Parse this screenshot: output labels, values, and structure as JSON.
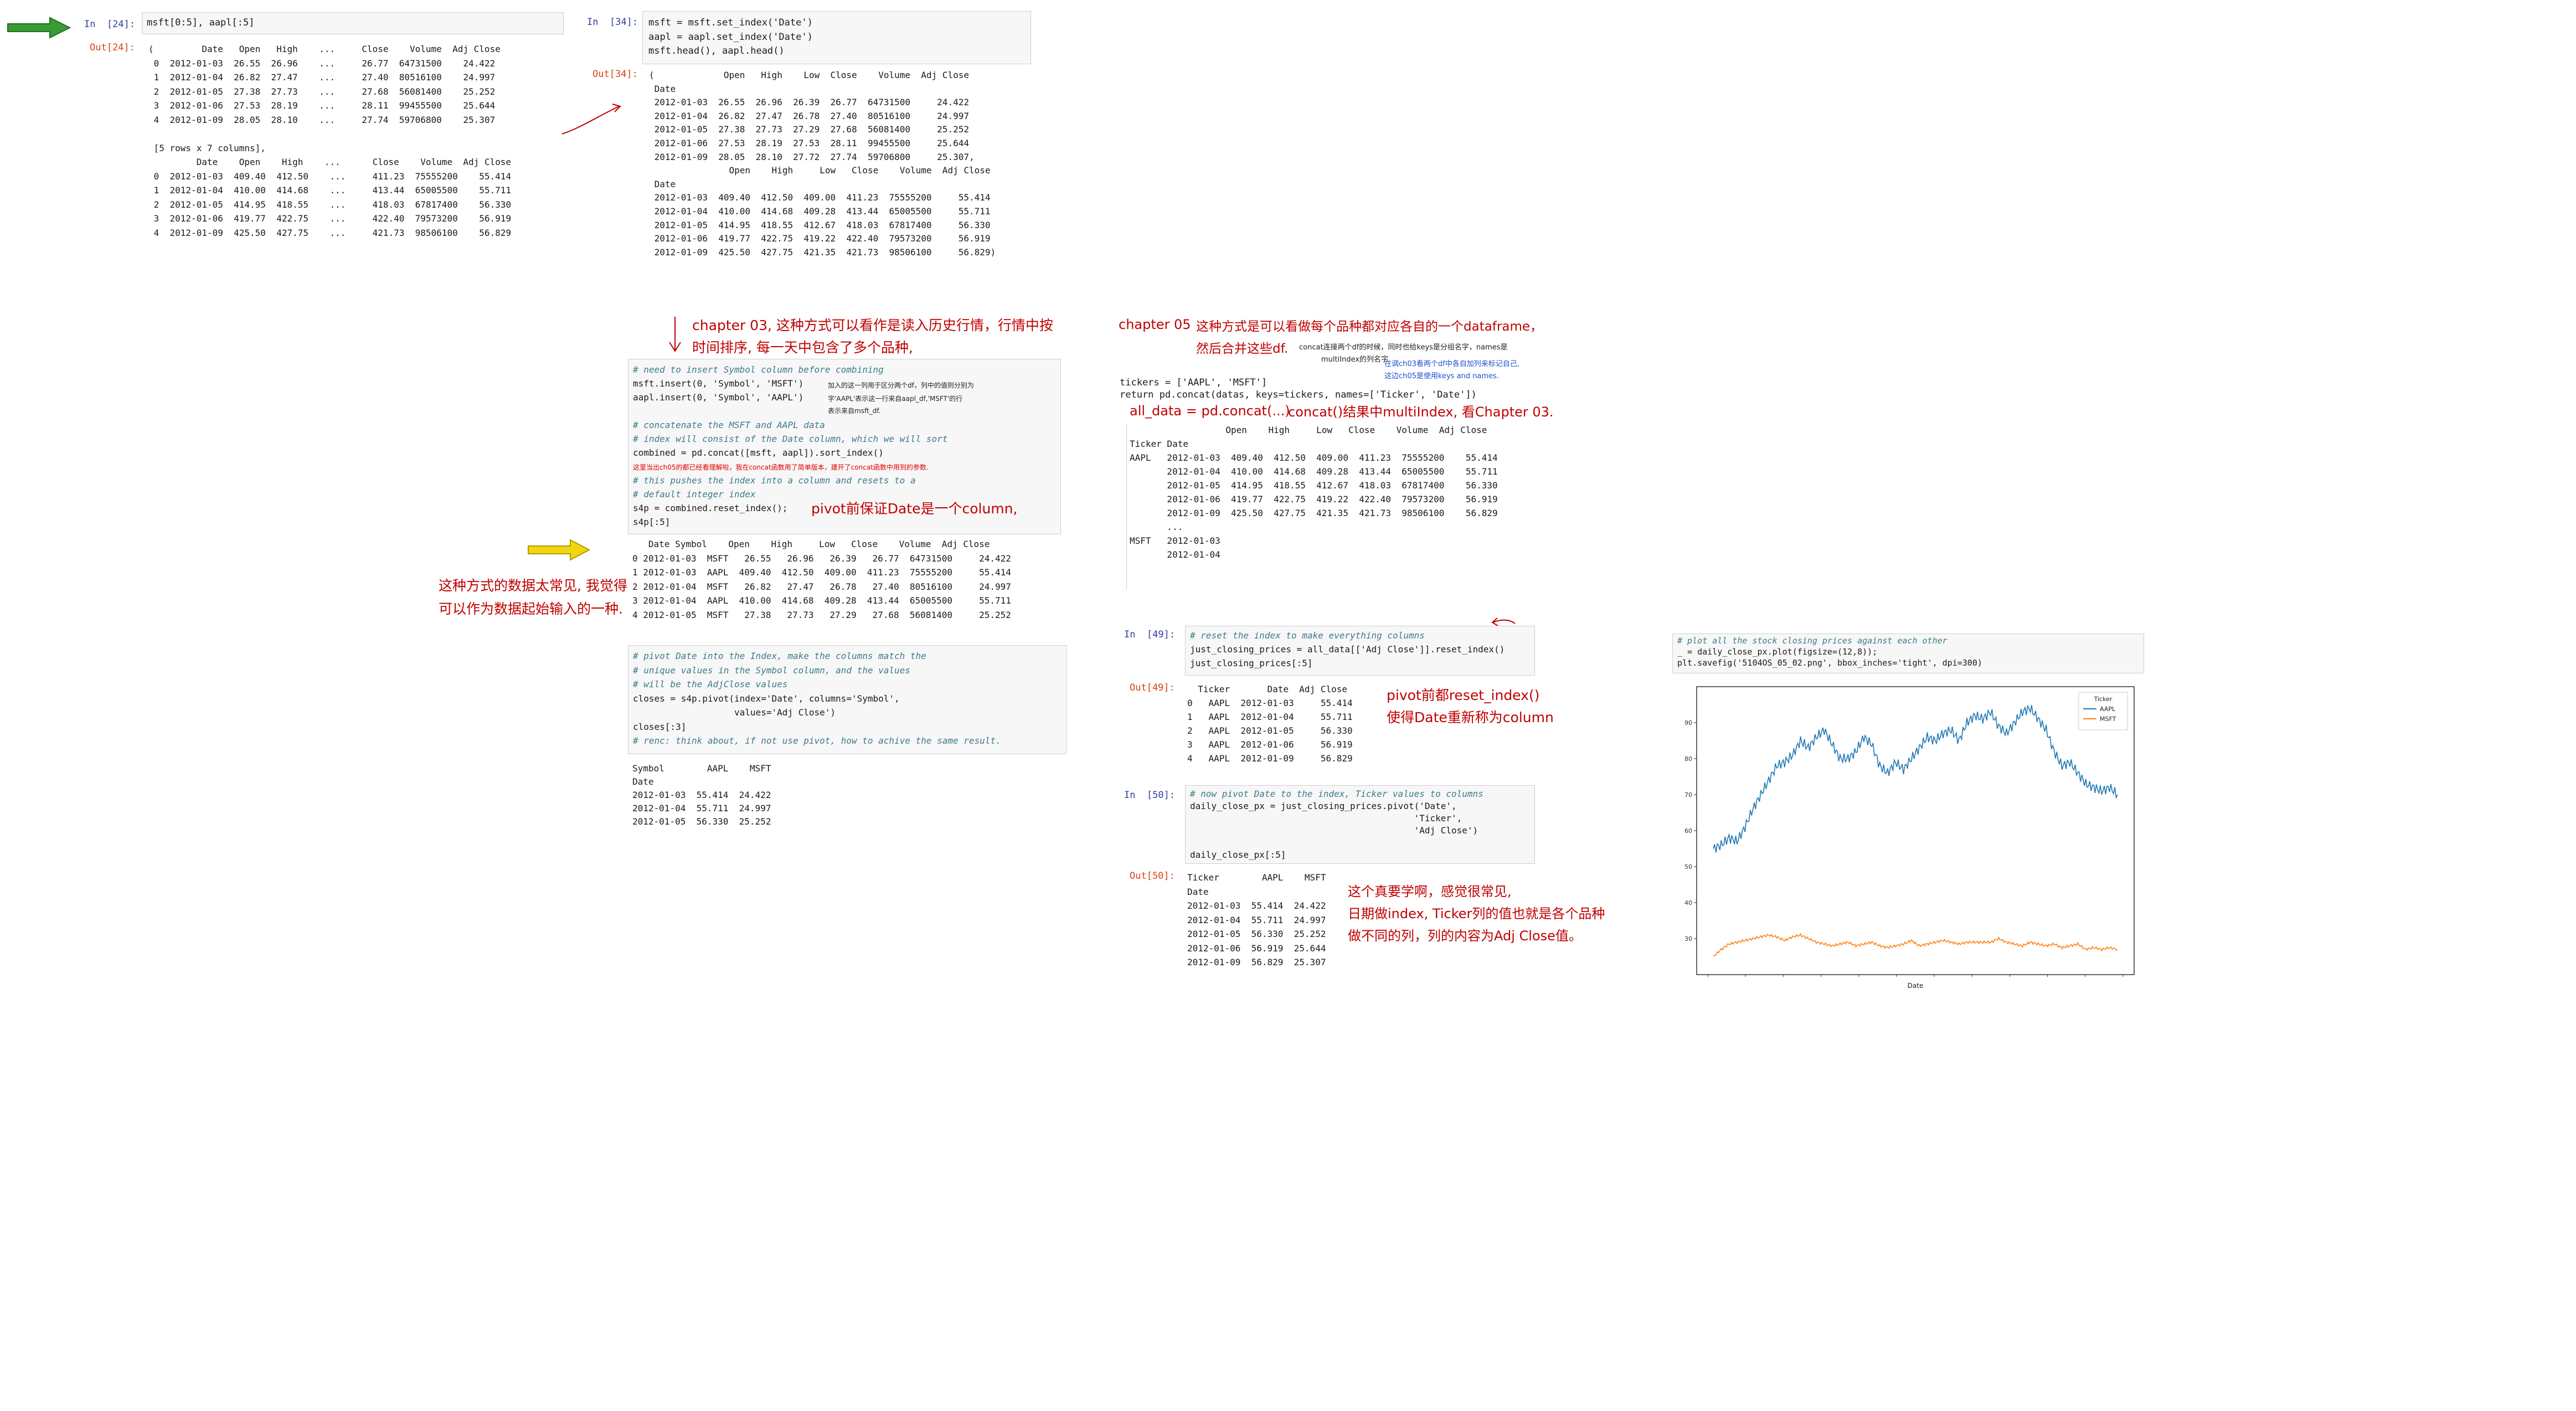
{
  "colors": {
    "red_note": "#c00000",
    "prompt_in": "#303f9f",
    "prompt_out": "#d84315",
    "aapl_line": "#1f77b4",
    "msft_line": "#ff7f0e",
    "green_arrow": "#3a9b35",
    "yellow_arrow": "#f2d50f"
  },
  "cell24": {
    "in_prompt": "In  [24]:",
    "code": "msft[0:5], aapl[:5]",
    "out_prompt": "Out[24]:",
    "out_lines": [
      "(         Date   Open   High    ...     Close    Volume  Adj Close",
      " 0  2012-01-03  26.55  26.96    ...     26.77  64731500    24.422",
      " 1  2012-01-04  26.82  27.47    ...     27.40  80516100    24.997",
      " 2  2012-01-05  27.38  27.73    ...     27.68  56081400    25.252",
      " 3  2012-01-06  27.53  28.19    ...     28.11  99455500    25.644",
      " 4  2012-01-09  28.05  28.10    ...     27.74  59706800    25.307",
      "",
      " [5 rows x 7 columns],",
      "         Date    Open    High    ...      Close    Volume  Adj Close",
      " 0  2012-01-03  409.40  412.50    ...     411.23  75555200    55.414",
      " 1  2012-01-04  410.00  414.68    ...     413.44  65005500    55.711",
      " 2  2012-01-05  414.95  418.55    ...     418.03  67817400    56.330",
      " 3  2012-01-06  419.77  422.75    ...     422.40  79573200    56.919",
      " 4  2012-01-09  425.50  427.75    ...     421.73  98506100    56.829"
    ]
  },
  "cell34": {
    "in_prompt": "In  [34]:",
    "code": [
      "msft = msft.set_index('Date')",
      "aapl = aapl.set_index('Date')",
      "msft.head(), aapl.head()"
    ],
    "out_prompt": "Out[34]:",
    "out_lines": [
      "(             Open   High    Low  Close    Volume  Adj Close",
      " Date",
      " 2012-01-03  26.55  26.96  26.39  26.77  64731500     24.422",
      " 2012-01-04  26.82  27.47  26.78  27.40  80516100     24.997",
      " 2012-01-05  27.38  27.73  27.29  27.68  56081400     25.252",
      " 2012-01-06  27.53  28.19  27.53  28.11  99455500     25.644",
      " 2012-01-09  28.05  28.10  27.72  27.74  59706800     25.307,",
      "               Open    High     Low   Close    Volume  Adj Close",
      " Date",
      " 2012-01-03  409.40  412.50  409.00  411.23  75555200     55.414",
      " 2012-01-04  410.00  414.68  409.28  413.44  65005500     55.711",
      " 2012-01-05  414.95  418.55  412.67  418.03  67817400     56.330",
      " 2012-01-06  419.77  422.75  419.22  422.40  79573200     56.919",
      " 2012-01-09  425.50  427.75  421.35  421.73  98506100     56.829)"
    ]
  },
  "notes_mid": {
    "ch03_line1": "chapter 03, 这种方式可以看作是读入历史行情，行情中按",
    "ch03_line2": "时间排序, 每一天中包含了多个品种,",
    "pivot_note": "pivot前保证Date是一个column,",
    "left_line1": "这种方式的数据太常见, 我觉得",
    "left_line2": "可以作为数据起始输入的一种."
  },
  "cell_combine": {
    "lines": [
      {
        "t": "comment",
        "text": "# need to insert Symbol column before combining"
      },
      {
        "t": "code",
        "text": "msft.insert(0, 'Symbol', 'MSFT')"
      },
      {
        "t": "code",
        "text": "aapl.insert(0, 'Symbol', 'AAPL')"
      },
      {
        "t": "blank",
        "text": ""
      },
      {
        "t": "comment",
        "text": "# concatenate the MSFT and AAPL data"
      },
      {
        "t": "comment",
        "text": "# index will consist of the Date column, which we will sort"
      },
      {
        "t": "code",
        "text": "combined = pd.concat([msft, aapl]).sort_index()"
      },
      {
        "t": "blank",
        "text": ""
      },
      {
        "t": "comment",
        "text": "# this pushes the index into a column and resets to a"
      },
      {
        "t": "comment",
        "text": "# default integer index"
      },
      {
        "t": "code",
        "text": "s4p = combined.reset_index();"
      },
      {
        "t": "code",
        "text": "s4p[:5]"
      }
    ],
    "small_note1": "加入的这一列用于区分两个df，列中的值则分别为",
    "small_note2": "字'AAPL'表示这一行来自aapl_df,'MSFT'的行",
    "small_note3": "表示来自msft_df.",
    "small_red": "这里当出ch05的都已经看理解啦，我在concat函数用了简单版本，建开了concat函数中用到的参数.",
    "out_lines": [
      "   Date Symbol    Open    High     Low   Close    Volume  Adj Close",
      "0 2012-01-03  MSFT   26.55   26.96   26.39   26.77  64731500     24.422",
      "1 2012-01-03  AAPL  409.40  412.50  409.00  411.23  75555200     55.414",
      "2 2012-01-04  MSFT   26.82   27.47   26.78   27.40  80516100     24.997",
      "3 2012-01-04  AAPL  410.00  414.68  409.28  413.44  65005500     55.711",
      "4 2012-01-05  MSFT   27.38   27.73   27.29   27.68  56081400     25.252"
    ]
  },
  "cell_pivot": {
    "lines": [
      {
        "t": "comment",
        "text": "# pivot Date into the Index, make the columns match the"
      },
      {
        "t": "comment",
        "text": "# unique values in the Symbol column, and the values"
      },
      {
        "t": "comment",
        "text": "# will be the AdjClose values"
      },
      {
        "t": "code",
        "text": "closes = s4p.pivot(index='Date', columns='Symbol',"
      },
      {
        "t": "code",
        "text": "                   values='Adj Close')"
      },
      {
        "t": "code",
        "text": "closes[:3]"
      },
      {
        "t": "comment",
        "text": "# renc: think about, if not use pivot, how to achive the same result."
      }
    ],
    "out_lines": [
      "Symbol        AAPL    MSFT",
      "Date",
      "2012-01-03  55.414  24.422",
      "2012-01-04  55.711  24.997",
      "2012-01-05  56.330  25.252"
    ]
  },
  "ch05": {
    "title": "chapter 05",
    "line1": "这种方式是可以看做每个品种都对应各自的一个dataframe，",
    "line2": "然后合并这些df.",
    "small1": "concat连接两个df的时候，同时也给keys是分组名字，names是",
    "small2": "multiIndex的列名字.",
    "blue1": "在调ch03看两个df中各自加列来标记自己,",
    "blue2": "这边ch05是使用keys and names.",
    "code": [
      "tickers = ['AAPL', 'MSFT']",
      "return pd.concat(datas, keys=tickers, names=['Ticker', 'Date'])"
    ],
    "concat_note": "concat()结果中multiIndex, 看Chapter 03.",
    "all_data_label": "all_data = pd.concat(...)",
    "out_lines": [
      "                  Open    High     Low   Close    Volume  Adj Close",
      "Ticker Date",
      "AAPL   2012-01-03  409.40  412.50  409.00  411.23  75555200    55.414",
      "       2012-01-04  410.00  414.68  409.28  413.44  65005500    55.711",
      "       2012-01-05  414.95  418.55  412.67  418.03  67817400    56.330",
      "       2012-01-06  419.77  422.75  419.22  422.40  79573200    56.919",
      "       2012-01-09  425.50  427.75  421.35  421.73  98506100    56.829",
      "       ...",
      "MSFT   2012-01-03",
      "       2012-01-04"
    ]
  },
  "cell49": {
    "in_prompt": "In  [49]:",
    "lines": [
      {
        "t": "comment",
        "text": "# reset the index to make everything columns"
      },
      {
        "t": "code",
        "text": "just_closing_prices = all_data[['Adj Close']].reset_index()"
      },
      {
        "t": "code",
        "text": "just_closing_prices[:5]"
      }
    ],
    "out_prompt": "Out[49]:",
    "out_lines": [
      "  Ticker       Date  Adj Close",
      "0   AAPL  2012-01-03     55.414",
      "1   AAPL  2012-01-04     55.711",
      "2   AAPL  2012-01-05     56.330",
      "3   AAPL  2012-01-06     56.919",
      "4   AAPL  2012-01-09     56.829"
    ],
    "note1": "pivot前都reset_index()",
    "note2": "使得Date重新称为column"
  },
  "cell50": {
    "in_prompt": "In  [50]:",
    "lines": [
      {
        "t": "comment",
        "text": "# now pivot Date to the index, Ticker values to columns"
      },
      {
        "t": "code",
        "text": "daily_close_px = just_closing_prices.pivot('Date',"
      },
      {
        "t": "code",
        "text": "                                          'Ticker',"
      },
      {
        "t": "code",
        "text": "                                          'Adj Close')"
      },
      {
        "t": "blank",
        "text": ""
      },
      {
        "t": "code",
        "text": "daily_close_px[:5]"
      }
    ],
    "out_prompt": "Out[50]:",
    "out_lines": [
      "Ticker        AAPL    MSFT",
      "Date",
      "2012-01-03  55.414  24.422",
      "2012-01-04  55.711  24.997",
      "2012-01-05  56.330  25.252",
      "2012-01-06  56.919  25.644",
      "2012-01-09  56.829  25.307"
    ],
    "note1": "这个真要学啊，感觉很常见,",
    "note2": "日期做index, Ticker列的值也就是各个品种",
    "note3": "做不同的列，列的内容为Adj Close值。"
  },
  "cell_plot": {
    "comment": "# plot all the stock closing prices against each other",
    "code1": "_ = daily_close_px.plot(figsize=(12,8));",
    "code2": "plt.savefig('5104OS_05_02.png', bbox_inches='tight', dpi=300)"
  },
  "chart_data": {
    "type": "line",
    "xlabel": "Date",
    "ylabel": "",
    "ylim": [
      20,
      100
    ],
    "yticks": [
      30,
      40,
      50,
      60,
      70,
      80,
      90
    ],
    "legend_title": "Ticker",
    "legend_position": "top-right",
    "series": [
      {
        "name": "AAPL",
        "values": [
          55,
          56,
          58,
          57,
          61,
          66,
          70,
          74,
          78,
          79,
          81,
          85,
          83,
          86,
          88,
          84,
          80,
          80,
          82,
          86,
          84,
          78,
          76,
          79,
          77,
          80,
          83,
          86,
          85,
          87,
          88,
          85,
          90,
          92,
          91,
          93,
          89,
          87,
          90,
          93,
          94,
          91,
          88,
          82,
          78,
          79,
          76,
          73,
          72,
          71,
          72,
          70
        ]
      },
      {
        "name": "MSFT",
        "values": [
          25,
          27,
          28.5,
          29,
          29.5,
          30,
          30.5,
          31,
          30.5,
          29.5,
          30.5,
          31,
          30,
          29,
          28.5,
          28,
          28.5,
          29,
          28,
          28.5,
          29,
          28,
          27.5,
          28,
          28.5,
          29.5,
          28,
          28.5,
          29,
          29.5,
          29,
          28.5,
          29,
          29,
          29,
          29,
          30,
          29,
          28.5,
          28,
          29,
          28.5,
          28,
          28.5,
          27.5,
          28,
          28.5,
          27,
          27.5,
          27,
          27.5,
          27
        ]
      }
    ]
  }
}
